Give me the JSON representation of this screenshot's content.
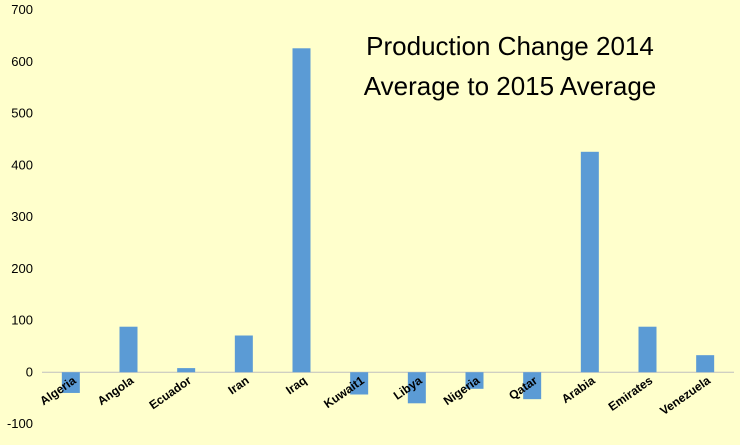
{
  "chart_data": {
    "type": "bar",
    "title_lines": [
      "Production Change 2014",
      "Average to 2015 Average"
    ],
    "xlabel": "",
    "ylabel": "",
    "categories": [
      "Algeria",
      "Angola",
      "Ecuador",
      "Iran",
      "Iraq",
      "Kuwait1",
      "Libya",
      "Nigeria",
      "Qatar",
      "Arabia",
      "Emirates",
      "Venezuela"
    ],
    "series": [
      {
        "values": [
          -40,
          88,
          8,
          71,
          626,
          -43,
          -60,
          -32,
          -52,
          426,
          88,
          33
        ]
      }
    ],
    "ylim": [
      -100,
      700
    ],
    "yticks": [
      -100,
      0,
      100,
      200,
      300,
      400,
      500,
      600,
      700
    ],
    "grid": false,
    "legend": "none",
    "colors": {
      "bar": "#5b9bd5",
      "background": "#ffffcc",
      "axis": "#bfbfbf"
    }
  }
}
